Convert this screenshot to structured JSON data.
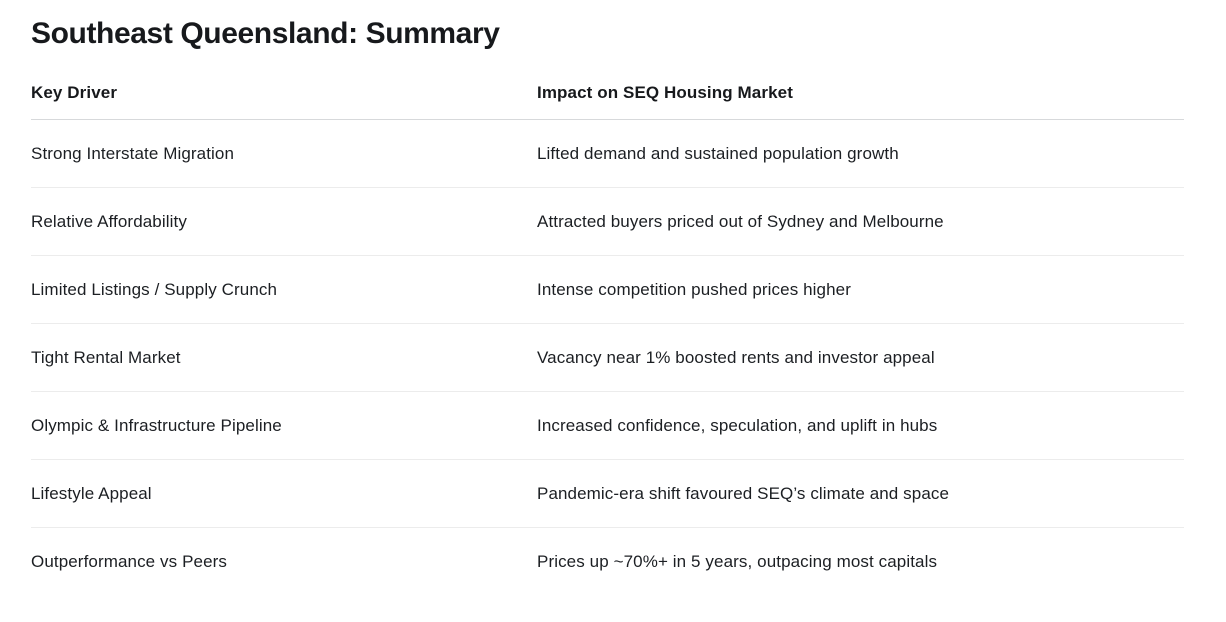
{
  "page": {
    "title": "Southeast Queensland: Summary"
  },
  "table": {
    "columns": [
      {
        "label": "Key Driver"
      },
      {
        "label": "Impact on SEQ Housing Market"
      }
    ],
    "rows": [
      {
        "driver": "Strong Interstate Migration",
        "impact": "Lifted demand and sustained population growth"
      },
      {
        "driver": "Relative Affordability",
        "impact": "Attracted buyers priced out of Sydney and Melbourne"
      },
      {
        "driver": "Limited Listings / Supply Crunch",
        "impact": "Intense competition pushed prices higher"
      },
      {
        "driver": "Tight Rental Market",
        "impact": "Vacancy near 1% boosted rents and investor appeal"
      },
      {
        "driver": "Olympic & Infrastructure Pipeline",
        "impact": "Increased confidence, speculation, and uplift in hubs"
      },
      {
        "driver": "Lifestyle Appeal",
        "impact": "Pandemic-era shift favoured SEQ’s climate and space"
      },
      {
        "driver": "Outperformance vs Peers",
        "impact": "Prices up ~70%+ in 5 years, outpacing most capitals"
      }
    ]
  },
  "colors": {
    "background": "#ffffff",
    "text": "#17191c",
    "header_divider": "#d7d9db",
    "row_divider": "#ececec"
  }
}
